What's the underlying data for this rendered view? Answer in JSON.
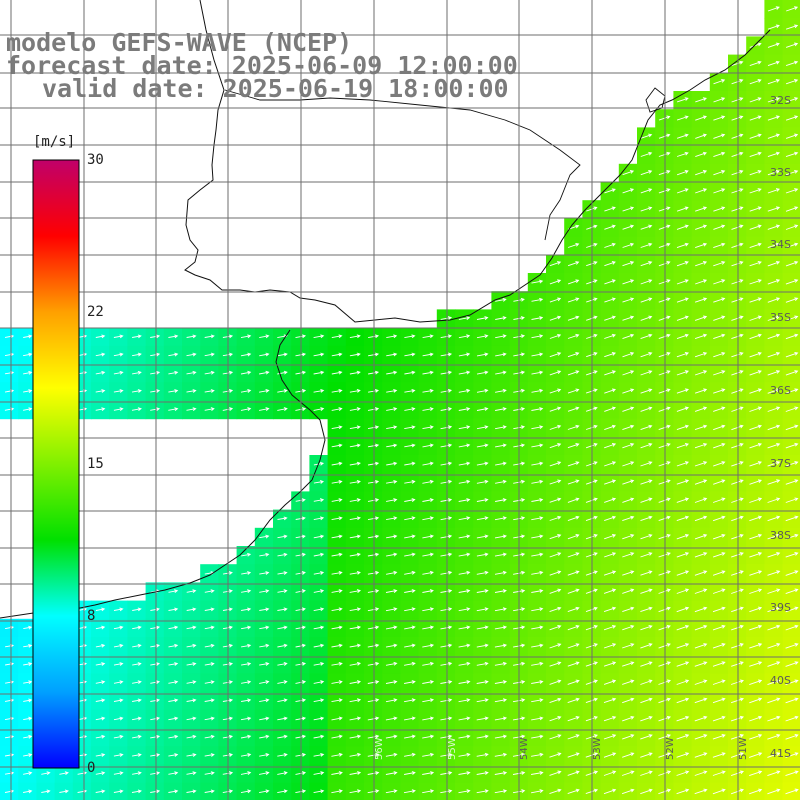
{
  "title": {
    "model": "modelo GEFS-WAVE (NCEP)",
    "forecast": "forecast date: 2025-06-09 12:00:00",
    "valid": "valid date: 2025-06-19 18:00:00"
  },
  "colorbar": {
    "unit": "[m/s]",
    "ticks": [
      "30",
      "22",
      "15",
      "8",
      "0"
    ],
    "min": 0,
    "max": 30,
    "colors": [
      "#0000ff",
      "#00a0ff",
      "#00ffff",
      "#00e000",
      "#80f000",
      "#ffff00",
      "#ffa000",
      "#ff0000",
      "#c0006a"
    ]
  },
  "grid": {
    "lat_labels": [
      "32S",
      "33S",
      "34S",
      "35S",
      "36S",
      "37S",
      "38S",
      "39S",
      "40S",
      "41S"
    ],
    "lon_labels": [
      "54W",
      "53W",
      "52W",
      "51W"
    ],
    "lon_labels_faint": [
      "56W",
      "55W"
    ]
  },
  "field": {
    "variable": "wind speed",
    "arrow_direction": "east-northeast",
    "land_color": "#ffffff",
    "gridline_color": "#6e6e6e"
  }
}
